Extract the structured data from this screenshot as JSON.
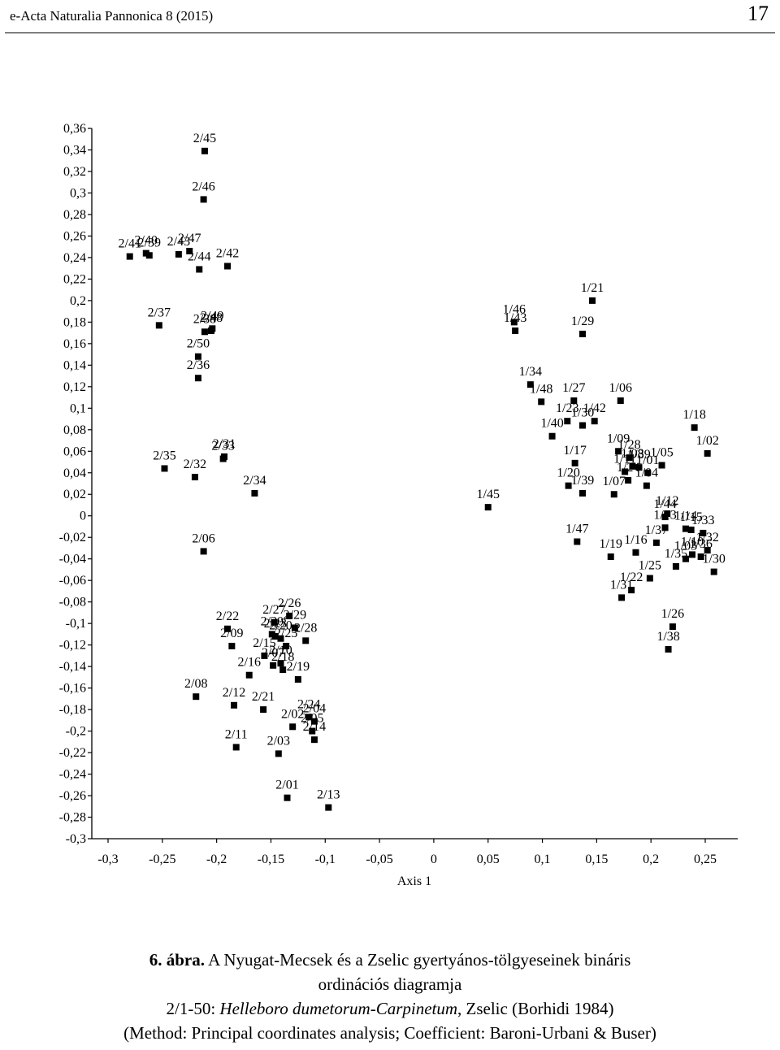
{
  "header": {
    "journal": "e-Acta Naturalia Pannonica 8 (2015)",
    "page_number": "17"
  },
  "caption": {
    "figure_number": "6. ábra.",
    "line1": "A Nyugat-Mecsek és a Zselic gyertyános-tölgyeseinek bináris",
    "line2": "ordinációs diagramja",
    "line3_prefix": "2/1-50: ",
    "line3_taxon": "Helleboro dumetorum-Carpinetum",
    "line3_suffix": ", Zselic (Borhidi 1984)",
    "line4": "(Method: Principal coordinates analysis; Coefficient: Baroni-Urbani & Buser)"
  },
  "chart_data": {
    "type": "scatter",
    "xlabel": "Axis 1",
    "ylabel": "",
    "xlim": [
      -0.3,
      0.28
    ],
    "ylim": [
      -0.3,
      0.36
    ],
    "x_ticks": [
      -0.3,
      -0.25,
      -0.2,
      -0.15,
      -0.1,
      -0.05,
      0,
      0.05,
      0.1,
      0.15,
      0.2,
      0.25
    ],
    "x_tick_labels": [
      "-0,3",
      "-0,25",
      "-0,2",
      "-0,15",
      "-0,1",
      "-0,05",
      "0",
      "0,05",
      "0,1",
      "0,15",
      "0,2",
      "0,25"
    ],
    "y_ticks": [
      0.36,
      0.34,
      0.32,
      0.3,
      0.28,
      0.26,
      0.24,
      0.22,
      0.2,
      0.18,
      0.16,
      0.14,
      0.12,
      0.1,
      0.08,
      0.06,
      0.04,
      0.02,
      0,
      -0.02,
      -0.04,
      -0.06,
      -0.08,
      -0.1,
      -0.12,
      -0.14,
      -0.16,
      -0.18,
      -0.2,
      -0.22,
      -0.24,
      -0.26,
      -0.28,
      -0.3
    ],
    "y_tick_labels": [
      "0,36",
      "0,34",
      "0,32",
      "0,3",
      "0,28",
      "0,26",
      "0,24",
      "0,22",
      "0,2",
      "0,18",
      "0,16",
      "0,14",
      "0,12",
      "0,1",
      "0,08",
      "0,06",
      "0,04",
      "0,02",
      "0",
      "-0,02",
      "-0,04",
      "-0,06",
      "-0,08",
      "-0,1",
      "-0,12",
      "-0,14",
      "-0,16",
      "-0,18",
      "-0,2",
      "-0,22",
      "-0,24",
      "-0,26",
      "-0,28",
      "-0,3"
    ],
    "grid": false,
    "marker": "square",
    "series": [
      {
        "points": [
          {
            "label": "2/45",
            "x": -0.211,
            "y": 0.339
          },
          {
            "label": "2/46",
            "x": -0.212,
            "y": 0.294
          },
          {
            "label": "2/40",
            "x": -0.265,
            "y": 0.244
          },
          {
            "label": "2/41",
            "x": -0.28,
            "y": 0.241
          },
          {
            "label": "2/39",
            "x": -0.262,
            "y": 0.242
          },
          {
            "label": "2/43",
            "x": -0.235,
            "y": 0.243
          },
          {
            "label": "2/47",
            "x": -0.225,
            "y": 0.246
          },
          {
            "label": "2/44",
            "x": -0.216,
            "y": 0.229
          },
          {
            "label": "2/42",
            "x": -0.19,
            "y": 0.232
          },
          {
            "label": "2/37",
            "x": -0.253,
            "y": 0.177
          },
          {
            "label": "2/48",
            "x": -0.205,
            "y": 0.172
          },
          {
            "label": "2/49",
            "x": -0.204,
            "y": 0.174
          },
          {
            "label": "2/38",
            "x": -0.211,
            "y": 0.171
          },
          {
            "label": "2/50",
            "x": -0.217,
            "y": 0.148
          },
          {
            "label": "2/36",
            "x": -0.217,
            "y": 0.128
          },
          {
            "label": "2/31",
            "x": -0.193,
            "y": 0.055
          },
          {
            "label": "2/33",
            "x": -0.194,
            "y": 0.053
          },
          {
            "label": "2/35",
            "x": -0.248,
            "y": 0.044
          },
          {
            "label": "2/32",
            "x": -0.22,
            "y": 0.036
          },
          {
            "label": "2/34",
            "x": -0.165,
            "y": 0.021
          },
          {
            "label": "2/06",
            "x": -0.212,
            "y": -0.033
          },
          {
            "label": "2/26",
            "x": -0.133,
            "y": -0.093
          },
          {
            "label": "2/27",
            "x": -0.147,
            "y": -0.099
          },
          {
            "label": "2/29",
            "x": -0.128,
            "y": -0.104
          },
          {
            "label": "2/22",
            "x": -0.19,
            "y": -0.105
          },
          {
            "label": "2/30",
            "x": -0.149,
            "y": -0.11
          },
          {
            "label": "2/23",
            "x": -0.146,
            "y": -0.112
          },
          {
            "label": "2/28",
            "x": -0.118,
            "y": -0.116
          },
          {
            "label": "2/20",
            "x": -0.141,
            "y": -0.114
          },
          {
            "label": "2/09",
            "x": -0.186,
            "y": -0.121
          },
          {
            "label": "2/25",
            "x": -0.136,
            "y": -0.121
          },
          {
            "label": "2/15",
            "x": -0.156,
            "y": -0.13
          },
          {
            "label": "2/10",
            "x": -0.141,
            "y": -0.137
          },
          {
            "label": "2/07",
            "x": -0.148,
            "y": -0.139
          },
          {
            "label": "2/18",
            "x": -0.139,
            "y": -0.143
          },
          {
            "label": "2/16",
            "x": -0.17,
            "y": -0.148
          },
          {
            "label": "2/19",
            "x": -0.125,
            "y": -0.152
          },
          {
            "label": "2/08",
            "x": -0.219,
            "y": -0.168
          },
          {
            "label": "2/12",
            "x": -0.184,
            "y": -0.176
          },
          {
            "label": "2/21",
            "x": -0.157,
            "y": -0.18
          },
          {
            "label": "2/24",
            "x": -0.115,
            "y": -0.187
          },
          {
            "label": "2/04",
            "x": -0.11,
            "y": -0.191
          },
          {
            "label": "2/02",
            "x": -0.13,
            "y": -0.196
          },
          {
            "label": "2/05",
            "x": -0.112,
            "y": -0.2
          },
          {
            "label": "2/14",
            "x": -0.11,
            "y": -0.208
          },
          {
            "label": "2/11",
            "x": -0.182,
            "y": -0.215
          },
          {
            "label": "2/03",
            "x": -0.143,
            "y": -0.221
          },
          {
            "label": "2/01",
            "x": -0.135,
            "y": -0.262
          },
          {
            "label": "2/13",
            "x": -0.097,
            "y": -0.271
          },
          {
            "label": "1/21",
            "x": 0.146,
            "y": 0.2
          },
          {
            "label": "1/46",
            "x": 0.074,
            "y": 0.18
          },
          {
            "label": "1/43",
            "x": 0.075,
            "y": 0.172
          },
          {
            "label": "1/29",
            "x": 0.137,
            "y": 0.169
          },
          {
            "label": "1/34",
            "x": 0.089,
            "y": 0.122
          },
          {
            "label": "1/48",
            "x": 0.099,
            "y": 0.106
          },
          {
            "label": "1/27",
            "x": 0.129,
            "y": 0.107
          },
          {
            "label": "1/06",
            "x": 0.172,
            "y": 0.107
          },
          {
            "label": "1/23",
            "x": 0.123,
            "y": 0.088
          },
          {
            "label": "1/42",
            "x": 0.148,
            "y": 0.088
          },
          {
            "label": "1/30",
            "x": 0.137,
            "y": 0.084
          },
          {
            "label": "1/40",
            "x": 0.109,
            "y": 0.074
          },
          {
            "label": "1/18",
            "x": 0.24,
            "y": 0.082
          },
          {
            "label": "1/02",
            "x": 0.252,
            "y": 0.058
          },
          {
            "label": "1/09",
            "x": 0.17,
            "y": 0.06
          },
          {
            "label": "1/28",
            "x": 0.18,
            "y": 0.054
          },
          {
            "label": "1/05",
            "x": 0.21,
            "y": 0.047
          },
          {
            "label": "1/17",
            "x": 0.13,
            "y": 0.049
          },
          {
            "label": "1/08",
            "x": 0.183,
            "y": 0.046
          },
          {
            "label": "1/39",
            "x": 0.189,
            "y": 0.045
          },
          {
            "label": "1/11",
            "x": 0.176,
            "y": 0.041
          },
          {
            "label": "1/01",
            "x": 0.197,
            "y": 0.04
          },
          {
            "label": "1/20",
            "x": 0.124,
            "y": 0.028
          },
          {
            "label": "1/39",
            "x": 0.137,
            "y": 0.021
          },
          {
            "label": "1/24",
            "x": 0.179,
            "y": 0.033
          },
          {
            "label": "1/04",
            "x": 0.196,
            "y": 0.028
          },
          {
            "label": "1/07",
            "x": 0.166,
            "y": 0.02
          },
          {
            "label": "1/45",
            "x": 0.05,
            "y": 0.008
          },
          {
            "label": "1/12",
            "x": 0.215,
            "y": 0.002
          },
          {
            "label": "1/44",
            "x": 0.213,
            "y": -0.001
          },
          {
            "label": "1/13",
            "x": 0.213,
            "y": -0.011
          },
          {
            "label": "1/14",
            "x": 0.232,
            "y": -0.012
          },
          {
            "label": "1/15",
            "x": 0.237,
            "y": -0.013
          },
          {
            "label": "1/33",
            "x": 0.248,
            "y": -0.016
          },
          {
            "label": "1/47",
            "x": 0.132,
            "y": -0.024
          },
          {
            "label": "1/37",
            "x": 0.205,
            "y": -0.025
          },
          {
            "label": "1/16",
            "x": 0.186,
            "y": -0.034
          },
          {
            "label": "1/19",
            "x": 0.163,
            "y": -0.038
          },
          {
            "label": "1/32",
            "x": 0.252,
            "y": -0.032
          },
          {
            "label": "1/10",
            "x": 0.238,
            "y": -0.036
          },
          {
            "label": "1/36",
            "x": 0.246,
            "y": -0.038
          },
          {
            "label": "1/03",
            "x": 0.232,
            "y": -0.04
          },
          {
            "label": "1/35",
            "x": 0.223,
            "y": -0.047
          },
          {
            "label": "1/30",
            "x": 0.258,
            "y": -0.052
          },
          {
            "label": "1/25",
            "x": 0.199,
            "y": -0.058
          },
          {
            "label": "1/22",
            "x": 0.182,
            "y": -0.069
          },
          {
            "label": "1/31",
            "x": 0.173,
            "y": -0.076
          },
          {
            "label": "1/26",
            "x": 0.22,
            "y": -0.103
          },
          {
            "label": "1/38",
            "x": 0.216,
            "y": -0.124
          }
        ]
      }
    ]
  }
}
